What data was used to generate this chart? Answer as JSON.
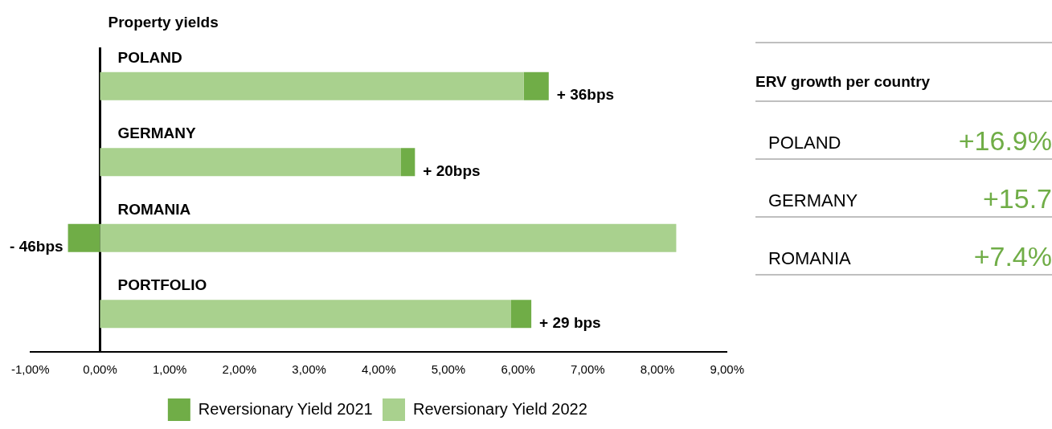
{
  "chart_data": [
    {
      "type": "bar",
      "orientation": "horizontal",
      "stacked": true,
      "title": "Property yields",
      "categories": [
        "POLAND",
        "GERMANY",
        "ROMANIA",
        "PORTFOLIO"
      ],
      "series": [
        {
          "name": "Reversionary Yield 2022",
          "color": "#a9d18e",
          "values": [
            6.08,
            4.32,
            8.27,
            5.9
          ]
        },
        {
          "name": "Reversionary Yield 2021",
          "color": "#70ad47",
          "values": [
            0.36,
            0.2,
            -0.46,
            0.29
          ]
        }
      ],
      "xlim": [
        -1,
        9
      ],
      "xticks": [
        {
          "value": -1,
          "label": "-1,00%"
        },
        {
          "value": 0,
          "label": "0,00%"
        },
        {
          "value": 1,
          "label": "1,00%"
        },
        {
          "value": 2,
          "label": "2,00%"
        },
        {
          "value": 3,
          "label": "3,00%"
        },
        {
          "value": 4,
          "label": "4,00%"
        },
        {
          "value": 5,
          "label": "5,00%"
        },
        {
          "value": 6,
          "label": "6,00%"
        },
        {
          "value": 7,
          "label": "7,00%"
        },
        {
          "value": 8,
          "label": "8,00%"
        },
        {
          "value": 9,
          "label": "9,00%"
        }
      ],
      "annotations": [
        {
          "text": "+ 36bps",
          "x": 6.44,
          "y": "POLAND"
        },
        {
          "text": "+ 20bps",
          "x": 4.52,
          "y": "GERMANY"
        },
        {
          "text": "- 46bps",
          "x": -0.46,
          "y": "ROMANIA"
        },
        {
          "text": "+ 29 bps",
          "x": 6.19,
          "y": "PORTFOLIO"
        }
      ],
      "grid": false,
      "legend": "bottom"
    },
    {
      "type": "other",
      "title": "ERV growth per country",
      "categories": [
        "POLAND",
        "GERMANY",
        "ROMANIA"
      ],
      "values": [
        16.9,
        15.7,
        7.4
      ],
      "value_labels": [
        "+16.9%",
        "+15.7",
        "+7.4%"
      ],
      "color": "#70ad47"
    }
  ]
}
